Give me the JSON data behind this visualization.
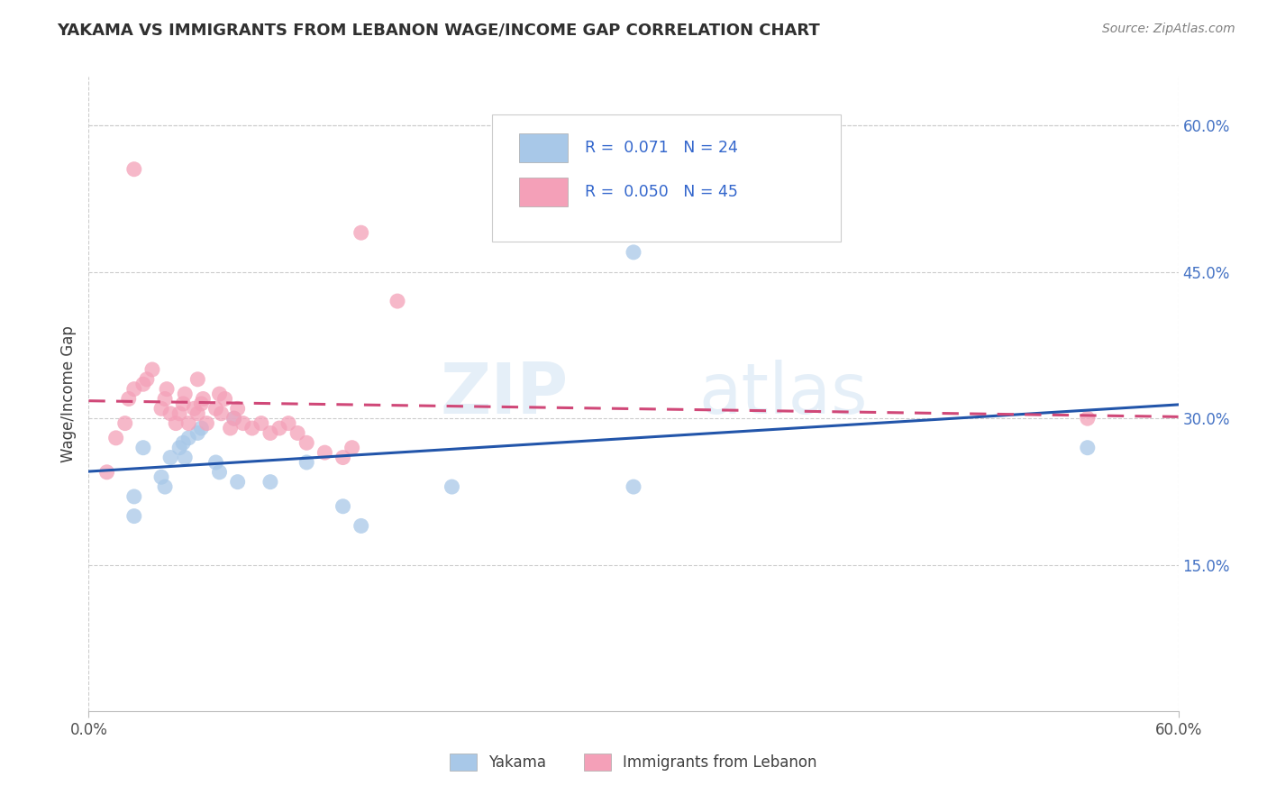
{
  "title": "YAKAMA VS IMMIGRANTS FROM LEBANON WAGE/INCOME GAP CORRELATION CHART",
  "source": "Source: ZipAtlas.com",
  "ylabel": "Wage/Income Gap",
  "xlim": [
    0.0,
    0.6
  ],
  "ylim": [
    0.0,
    0.65
  ],
  "x_tick_positions": [
    0.0,
    0.6
  ],
  "x_tick_labels": [
    "0.0%",
    "60.0%"
  ],
  "y_ticks_right": [
    0.15,
    0.3,
    0.45,
    0.6
  ],
  "y_tick_labels_right": [
    "15.0%",
    "30.0%",
    "45.0%",
    "60.0%"
  ],
  "blue_color": "#a8c8e8",
  "pink_color": "#f4a0b8",
  "blue_line_color": "#2255aa",
  "pink_line_color": "#d04878",
  "grid_color": "#cccccc",
  "bg_color": "#ffffff",
  "title_color": "#303030",
  "source_color": "#808080",
  "legend_text_color": "#3366cc",
  "blue_scatter_x": [
    0.025,
    0.025,
    0.03,
    0.04,
    0.042,
    0.045,
    0.05,
    0.052,
    0.053,
    0.055,
    0.06,
    0.062,
    0.07,
    0.072,
    0.08,
    0.082,
    0.1,
    0.12,
    0.14,
    0.15,
    0.2,
    0.3,
    0.55,
    0.3
  ],
  "blue_scatter_y": [
    0.22,
    0.2,
    0.27,
    0.24,
    0.23,
    0.26,
    0.27,
    0.275,
    0.26,
    0.28,
    0.285,
    0.29,
    0.255,
    0.245,
    0.3,
    0.235,
    0.235,
    0.255,
    0.21,
    0.19,
    0.23,
    0.23,
    0.27,
    0.47
  ],
  "pink_scatter_x": [
    0.01,
    0.015,
    0.02,
    0.022,
    0.025,
    0.03,
    0.032,
    0.035,
    0.04,
    0.042,
    0.043,
    0.045,
    0.048,
    0.05,
    0.052,
    0.053,
    0.055,
    0.058,
    0.06,
    0.062,
    0.063,
    0.065,
    0.07,
    0.072,
    0.073,
    0.075,
    0.078,
    0.08,
    0.082,
    0.085,
    0.09,
    0.095,
    0.1,
    0.105,
    0.11,
    0.115,
    0.12,
    0.13,
    0.14,
    0.145,
    0.15,
    0.17,
    0.55,
    0.025,
    0.06
  ],
  "pink_scatter_y": [
    0.245,
    0.28,
    0.295,
    0.32,
    0.33,
    0.335,
    0.34,
    0.35,
    0.31,
    0.32,
    0.33,
    0.305,
    0.295,
    0.305,
    0.315,
    0.325,
    0.295,
    0.31,
    0.305,
    0.315,
    0.32,
    0.295,
    0.31,
    0.325,
    0.305,
    0.32,
    0.29,
    0.3,
    0.31,
    0.295,
    0.29,
    0.295,
    0.285,
    0.29,
    0.295,
    0.285,
    0.275,
    0.265,
    0.26,
    0.27,
    0.49,
    0.42,
    0.3,
    0.555,
    0.34
  ],
  "watermark_part1": "ZIP",
  "watermark_part2": "atlas",
  "legend_r1": "R =  0.071   N = 24",
  "legend_r2": "R =  0.050   N = 45",
  "bottom_legend_labels": [
    "Yakama",
    "Immigrants from Lebanon"
  ]
}
